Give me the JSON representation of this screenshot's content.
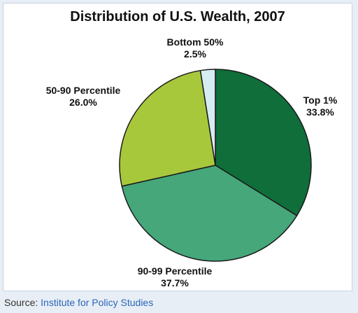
{
  "chart_data": {
    "type": "pie",
    "title": "Distribution of U.S. Wealth, 2007",
    "slices": [
      {
        "label": "Top 1%",
        "value": 33.8,
        "value_label": "33.8%",
        "color": "#0f6e3a"
      },
      {
        "label": "90-99 Percentile",
        "value": 37.7,
        "value_label": "37.7%",
        "color": "#45a77a"
      },
      {
        "label": "50-90 Percentile",
        "value": 26.0,
        "value_label": "26.0%",
        "color": "#a8c83c"
      },
      {
        "label": "Bottom 50%",
        "value": 2.5,
        "value_label": "2.5%",
        "color": "#d6ecf3"
      }
    ]
  },
  "source": {
    "prefix": "Source:",
    "link_text": "Institute for Policy Studies"
  }
}
